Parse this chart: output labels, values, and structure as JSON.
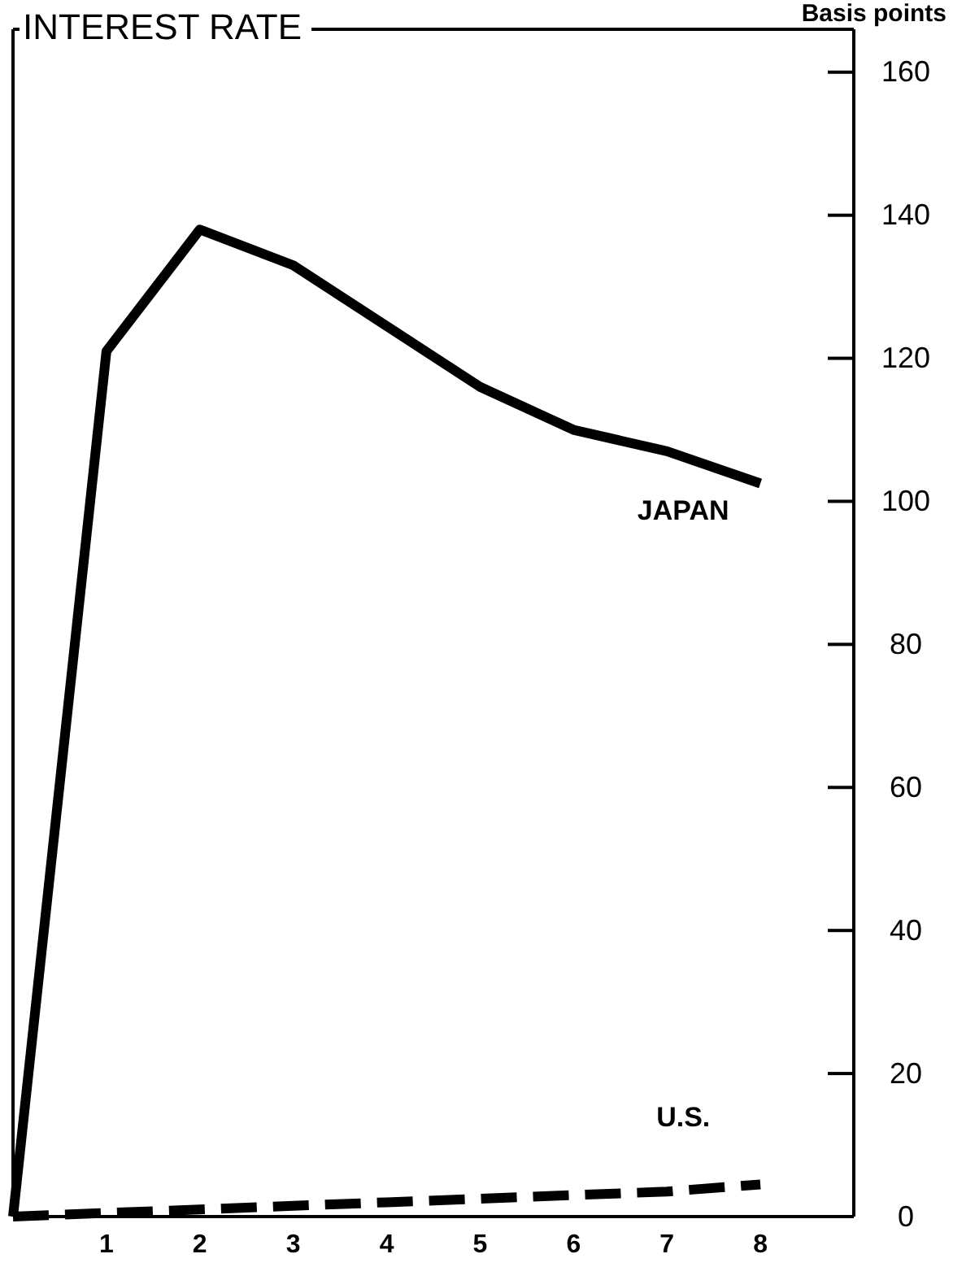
{
  "chart_data": {
    "type": "line",
    "title": "INTEREST RATE",
    "ylabel": "Basis points",
    "x": [
      0,
      1,
      2,
      3,
      4,
      5,
      6,
      7,
      8
    ],
    "xlim": [
      0,
      9
    ],
    "xticks": [
      1,
      2,
      3,
      4,
      5,
      6,
      7,
      8
    ],
    "ylim": [
      0,
      166
    ],
    "yticks": [
      0,
      20,
      40,
      60,
      80,
      100,
      120,
      140,
      160
    ],
    "grid": false,
    "series": [
      {
        "name": "JAPAN",
        "color": "#000000",
        "line_style": "solid",
        "values": [
          0,
          121,
          138,
          133,
          124.5,
          116,
          110,
          107,
          102.5
        ]
      },
      {
        "name": "U.S.",
        "color": "#000000",
        "line_style": "dashed",
        "values": [
          0,
          0.5,
          1,
          1.5,
          2,
          2.5,
          3,
          3.5,
          4.5
        ]
      }
    ]
  }
}
